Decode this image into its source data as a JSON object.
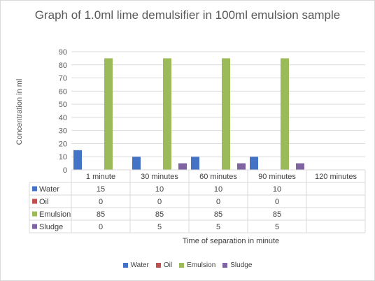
{
  "chart_data": {
    "type": "bar",
    "title": "Graph of 1.0ml lime demulsifier in 100ml emulsion sample",
    "xlabel": "Time of separation in minute",
    "ylabel": "Concentration in ml",
    "categories": [
      "1 minute",
      "30 minutes",
      "60 minutes",
      "90 minutes",
      "120 minutes"
    ],
    "series": [
      {
        "name": "Water",
        "values": [
          15,
          10,
          10,
          10,
          null
        ],
        "color": "#4472c4"
      },
      {
        "name": "Oil",
        "values": [
          0,
          0,
          0,
          0,
          null
        ],
        "color": "#c0504d"
      },
      {
        "name": "Emulsion",
        "values": [
          85,
          85,
          85,
          85,
          null
        ],
        "color": "#9bbb59"
      },
      {
        "name": "Sludge",
        "values": [
          0,
          5,
          5,
          5,
          null
        ],
        "color": "#8064a2"
      }
    ],
    "ylim": [
      0,
      90
    ],
    "yticks": [
      0,
      10,
      20,
      30,
      40,
      50,
      60,
      70,
      80,
      90
    ],
    "grid": true,
    "legend": "bottom",
    "data_table": true
  }
}
